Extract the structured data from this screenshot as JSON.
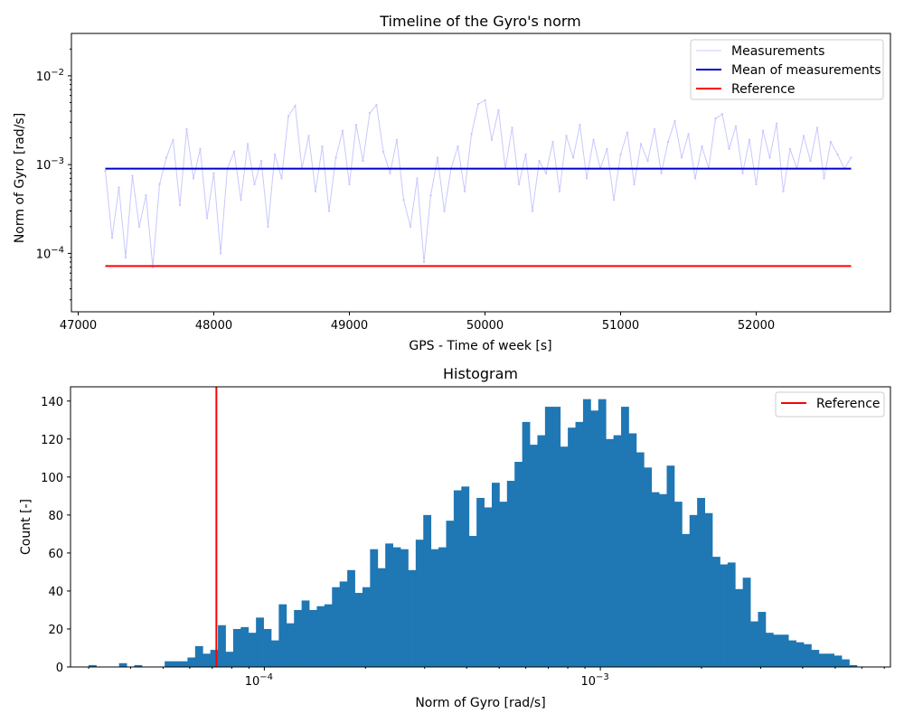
{
  "chart_data": [
    {
      "type": "line",
      "title": "Timeline of the Gyro's norm",
      "xlabel": "GPS - Time of week [s]",
      "ylabel": "Norm of Gyro [rad/s]",
      "xlim": [
        46950,
        52990
      ],
      "ylim": [
        2.2e-05,
        0.03
      ],
      "yscale": "log",
      "x_ticks": [
        47000,
        48000,
        49000,
        50000,
        51000,
        52000
      ],
      "x_tick_labels": [
        "47000",
        "48000",
        "49000",
        "50000",
        "51000",
        "52000"
      ],
      "y_ticks": [
        0.0001,
        0.001,
        0.01
      ],
      "y_tick_labels": [
        "10−4",
        "10−3",
        "10−2"
      ],
      "grid": false,
      "legend_placement": "top-right",
      "series": [
        {
          "name": "Measurements",
          "color": "#c8c8ff",
          "x": [
            47200,
            47250,
            47300,
            47350,
            47400,
            47450,
            47500,
            47550,
            47600,
            47650,
            47700,
            47750,
            47800,
            47850,
            47900,
            47950,
            48000,
            48050,
            48100,
            48150,
            48200,
            48250,
            48300,
            48350,
            48400,
            48450,
            48500,
            48550,
            48600,
            48650,
            48700,
            48750,
            48800,
            48850,
            48900,
            48950,
            49000,
            49050,
            49100,
            49150,
            49200,
            49250,
            49300,
            49350,
            49400,
            49450,
            49500,
            49550,
            49600,
            49650,
            49700,
            49750,
            49800,
            49850,
            49900,
            49950,
            50000,
            50050,
            50100,
            50150,
            50200,
            50250,
            50300,
            50350,
            50400,
            50450,
            50500,
            50550,
            50600,
            50650,
            50700,
            50750,
            50800,
            50850,
            50900,
            50950,
            51000,
            51050,
            51100,
            51150,
            51200,
            51250,
            51300,
            51350,
            51400,
            51450,
            51500,
            51550,
            51600,
            51650,
            51700,
            51750,
            51800,
            51850,
            51900,
            51950,
            52000,
            52050,
            52100,
            52150,
            52200,
            52250,
            52300,
            52350,
            52400,
            52450,
            52500,
            52550,
            52600,
            52650,
            52700
          ],
          "y": [
            0.00085,
            0.00015,
            0.00055,
            9e-05,
            0.00075,
            0.0002,
            0.00045,
            7e-05,
            0.0006,
            0.0012,
            0.0019,
            0.00035,
            0.0025,
            0.0007,
            0.0015,
            0.00025,
            0.0008,
            0.0001,
            0.0009,
            0.0014,
            0.0004,
            0.0017,
            0.0006,
            0.0011,
            0.0002,
            0.0013,
            0.0007,
            0.0035,
            0.0046,
            0.0009,
            0.0021,
            0.0005,
            0.0016,
            0.0003,
            0.0012,
            0.0024,
            0.0006,
            0.0028,
            0.0011,
            0.0038,
            0.0047,
            0.0014,
            0.0008,
            0.0019,
            0.0004,
            0.0002,
            0.0007,
            8e-05,
            0.00045,
            0.0012,
            0.0003,
            0.0009,
            0.0016,
            0.0005,
            0.0022,
            0.0048,
            0.0053,
            0.0019,
            0.0041,
            0.0009,
            0.0026,
            0.0006,
            0.0013,
            0.0003,
            0.0011,
            0.0008,
            0.0018,
            0.0005,
            0.0021,
            0.0012,
            0.0028,
            0.0007,
            0.0019,
            0.0009,
            0.0015,
            0.0004,
            0.0013,
            0.0023,
            0.0006,
            0.0017,
            0.0011,
            0.0025,
            0.0008,
            0.0018,
            0.0031,
            0.0012,
            0.0022,
            0.0007,
            0.0016,
            0.0009,
            0.0033,
            0.0037,
            0.0015,
            0.0027,
            0.0008,
            0.0019,
            0.0006,
            0.0024,
            0.0012,
            0.0029,
            0.0005,
            0.0015,
            0.0009,
            0.0021,
            0.0011,
            0.0026,
            0.0007,
            0.0018,
            0.0013,
            0.0009,
            0.0012
          ]
        },
        {
          "name": "Mean of measurements",
          "color": "#0000cc",
          "x": [
            47200,
            52700
          ],
          "y": [
            0.0009,
            0.0009
          ]
        },
        {
          "name": "Reference",
          "color": "#ff0000",
          "x": [
            47200,
            52700
          ],
          "y": [
            7.2e-05,
            7.2e-05
          ]
        }
      ]
    },
    {
      "type": "bar",
      "title": "Histogram",
      "xlabel": "Norm of Gyro [rad/s]",
      "ylabel": "Count [-]",
      "xscale": "log",
      "xlim": [
        2.65e-05,
        0.0073
      ],
      "ylim": [
        0,
        147.5
      ],
      "x_ticks": [
        0.0001,
        0.001
      ],
      "x_tick_labels": [
        "10−4",
        "10−3"
      ],
      "y_ticks": [
        0,
        20,
        40,
        60,
        80,
        100,
        120,
        140
      ],
      "y_tick_labels": [
        "0",
        "20",
        "40",
        "60",
        "80",
        "100",
        "120",
        "140"
      ],
      "grid": false,
      "legend_placement": "top-right",
      "bar_color": "#1f77b4",
      "bin_edges_range": [
        3e-05,
        0.0058
      ],
      "values": [
        1,
        0,
        0,
        0,
        2,
        0,
        1,
        0,
        0,
        0,
        3,
        3,
        3,
        5,
        11,
        7,
        9,
        22,
        8,
        20,
        21,
        18,
        26,
        20,
        14,
        33,
        23,
        30,
        35,
        30,
        32,
        33,
        42,
        45,
        51,
        39,
        42,
        62,
        52,
        65,
        63,
        62,
        51,
        67,
        80,
        62,
        63,
        77,
        93,
        95,
        69,
        89,
        84,
        97,
        87,
        98,
        108,
        129,
        117,
        122,
        137,
        137,
        116,
        126,
        129,
        141,
        135,
        141,
        120,
        122,
        137,
        123,
        113,
        105,
        92,
        91,
        106,
        87,
        70,
        80,
        89,
        81,
        58,
        54,
        55,
        41,
        47,
        24,
        29,
        18,
        17,
        17,
        14,
        13,
        12,
        9,
        7,
        7,
        6,
        4,
        1
      ],
      "reference": {
        "name": "Reference",
        "color": "#ff0000",
        "x": 7.2e-05
      }
    }
  ]
}
